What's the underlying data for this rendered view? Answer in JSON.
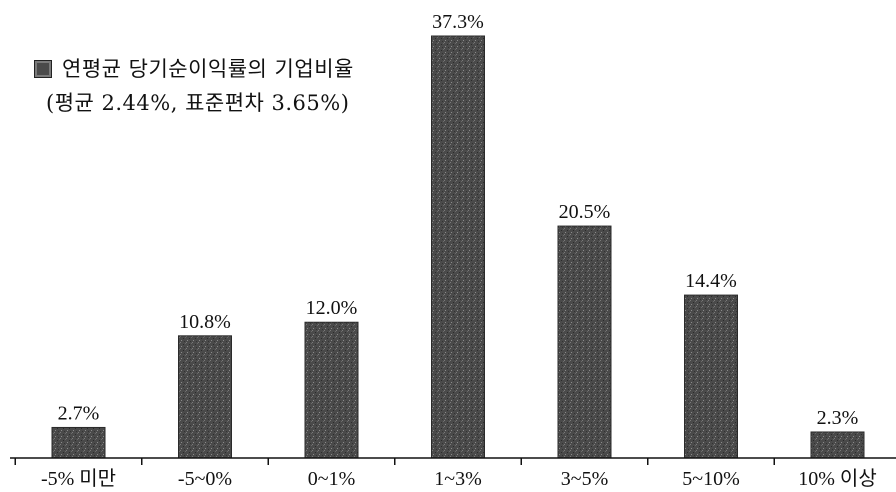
{
  "chart_data": {
    "type": "bar",
    "categories": [
      "-5% 미만",
      "-5~0%",
      "0~1%",
      "1~3%",
      "3~5%",
      "5~10%",
      "10% 이상"
    ],
    "series": [
      {
        "name": "연평균 당기순이익률의 기업비율",
        "values": [
          2.7,
          10.8,
          12.0,
          37.3,
          20.5,
          14.4,
          2.3
        ]
      }
    ],
    "value_labels": [
      "2.7%",
      "10.8%",
      "12.0%",
      "37.3%",
      "20.5%",
      "14.4%",
      "2.3%"
    ],
    "ylim": [
      0,
      37.3
    ],
    "grid": false,
    "legend_position": "top-left",
    "bar_color": "#4a4a4a",
    "axis_color": "#111111"
  },
  "legend": {
    "label": "연평균 당기순이익률의 기업비율",
    "stats": "(평균 2.44%, 표준편차 3.65%)"
  }
}
